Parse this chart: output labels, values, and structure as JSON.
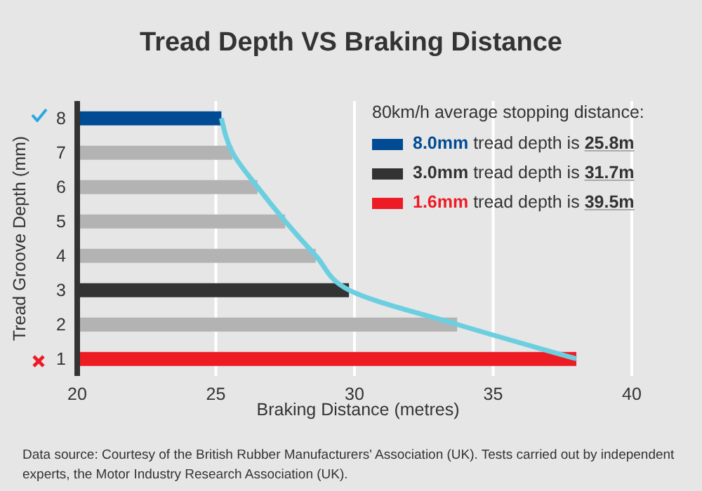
{
  "chart_data": {
    "type": "bar",
    "orientation": "horizontal",
    "title": "Tread Depth VS Braking Distance",
    "xlabel": "Braking Distance (metres)",
    "ylabel": "Tread Groove Depth (mm)",
    "legend_title": "80km/h average stopping distance:",
    "categories": [
      "8",
      "7",
      "6",
      "5",
      "4",
      "3",
      "2",
      "1"
    ],
    "series": [
      {
        "name": "8.0mm tread depth is 25.8m",
        "color": "#004b93",
        "values": [
          25.2,
          null,
          null,
          null,
          null,
          null,
          null,
          null
        ]
      },
      {
        "name": "3.0mm tread depth is 31.7m",
        "color": "#333333",
        "values": [
          null,
          null,
          null,
          null,
          null,
          29.8,
          null,
          null
        ]
      },
      {
        "name": "1.6mm tread depth is 39.5m",
        "color": "#ed1c24",
        "values": [
          null,
          null,
          null,
          null,
          null,
          null,
          null,
          38.0
        ]
      },
      {
        "color": "#b3b3b3",
        "values": [
          null,
          25.6,
          26.5,
          27.5,
          28.6,
          null,
          33.7,
          null
        ]
      },
      {
        "type": "line",
        "color": "#6ccfe0",
        "values": [
          25.2,
          25.6,
          26.5,
          27.5,
          28.6,
          29.8,
          33.7,
          38.0
        ]
      }
    ],
    "xlim": [
      20,
      40
    ],
    "xticks": [
      20,
      25,
      30,
      35,
      40
    ],
    "grid": "x",
    "legend": "top right",
    "annotations": [
      "Data source: Courtesy of the British Rubber Manufacturers' Association (UK). Tests carried out by independent experts, the Motor Industry Research Association (UK)."
    ]
  }
}
